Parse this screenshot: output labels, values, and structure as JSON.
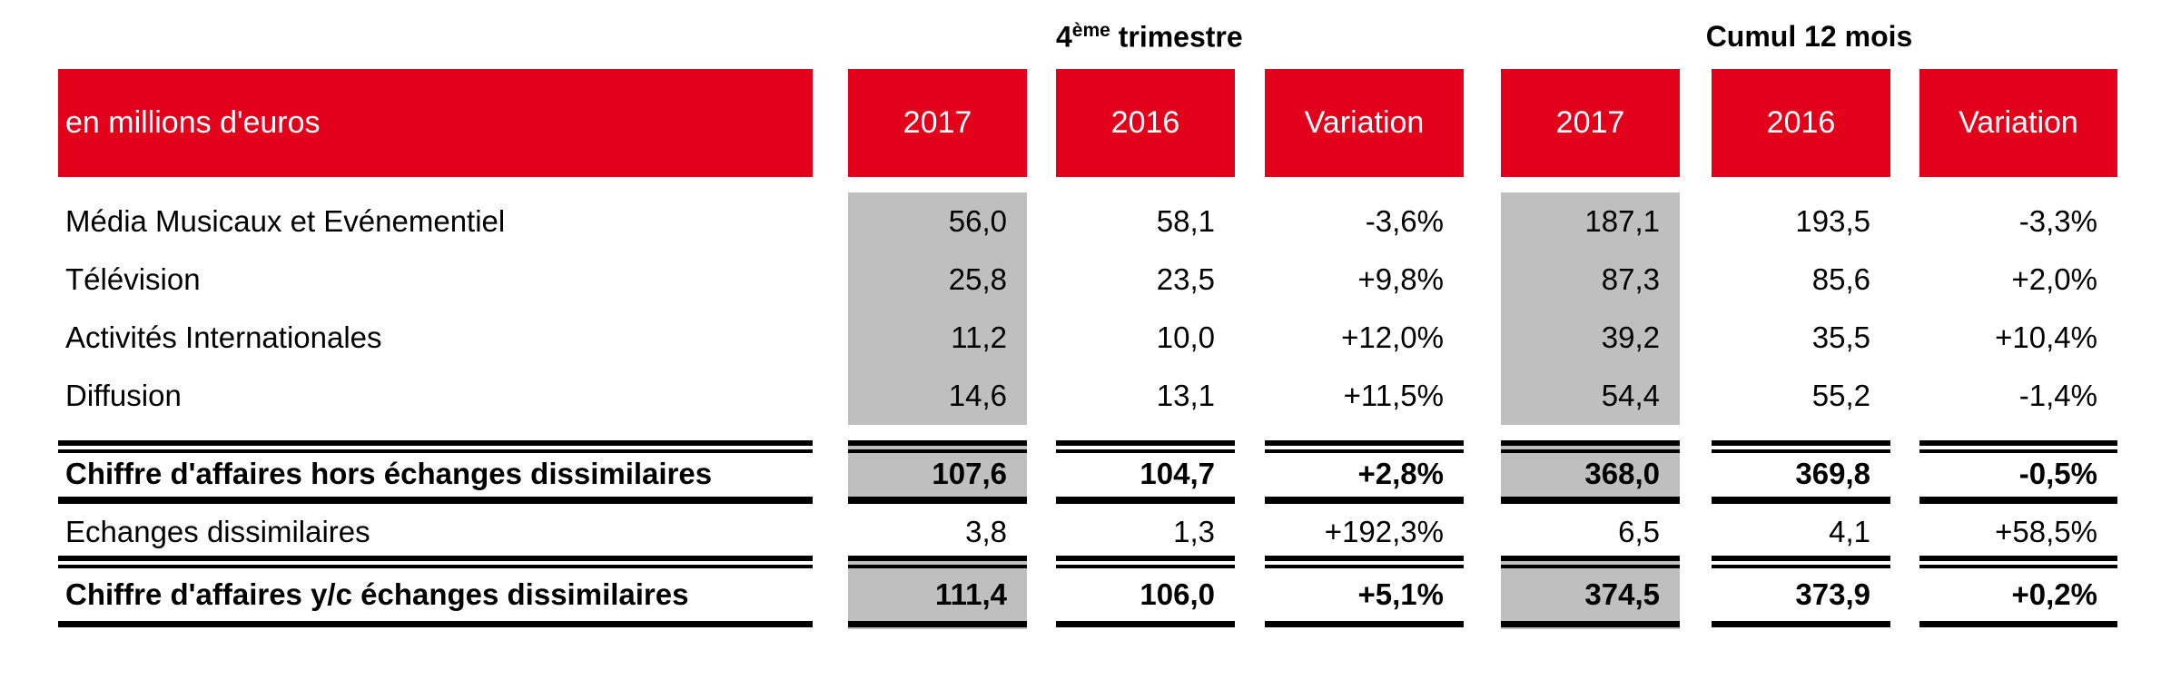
{
  "group_titles": {
    "q4": {
      "prefix": "4",
      "sup": "ème",
      "suffix": " trimestre"
    },
    "cumul": "Cumul 12 mois"
  },
  "header": {
    "label": "en millions d'euros",
    "columns": [
      "2017",
      "2016",
      "Variation",
      "2017",
      "2016",
      "Variation"
    ]
  },
  "rows": [
    {
      "label": "Média Musicaux et Evénementiel",
      "values": [
        "56,0",
        "58,1",
        "-3,6%",
        "187,1",
        "193,5",
        "-3,3%"
      ],
      "bold": false
    },
    {
      "label": "Télévision",
      "values": [
        "25,8",
        "23,5",
        "+9,8%",
        "87,3",
        "85,6",
        "+2,0%"
      ],
      "bold": false
    },
    {
      "label": "Activités Internationales",
      "values": [
        "11,2",
        "10,0",
        "+12,0%",
        "39,2",
        "35,5",
        "+10,4%"
      ],
      "bold": false
    },
    {
      "label": "Diffusion",
      "values": [
        "14,6",
        "13,1",
        "+11,5%",
        "54,4",
        "55,2",
        "-1,4%"
      ],
      "bold": false
    },
    {
      "label": "Chiffre d'affaires hors échanges dissimilaires",
      "values": [
        "107,6",
        "104,7",
        "+2,8%",
        "368,0",
        "369,8",
        "-0,5%"
      ],
      "bold": true
    },
    {
      "label": "Echanges dissimilaires",
      "values": [
        "3,8",
        "1,3",
        "+192,3%",
        "6,5",
        "4,1",
        "+58,5%"
      ],
      "bold": false
    },
    {
      "label": "Chiffre d'affaires y/c échanges dissimilaires",
      "values": [
        "111,4",
        "106,0",
        "+5,1%",
        "374,5",
        "373,9",
        "+0,2%"
      ],
      "bold": true
    }
  ],
  "colors": {
    "header_red": "#e2001a",
    "highlight_gray": "#bfbfbf"
  }
}
